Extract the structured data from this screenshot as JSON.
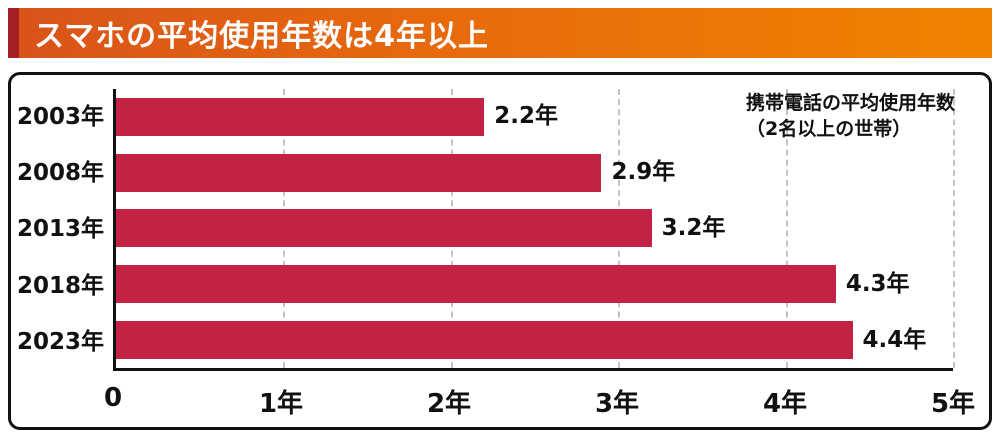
{
  "banner": {
    "title": "スマホの平均使用年数は4年以上",
    "gradient_left": "#d9531a",
    "gradient_right": "#f08300",
    "accent_color": "#a32026"
  },
  "annotation": {
    "line1": "携帯電話の平均使用年数",
    "line2": "（2名以上の世帯）"
  },
  "chart_data": {
    "type": "bar",
    "orientation": "horizontal",
    "title": "スマホの平均使用年数は4年以上",
    "categories": [
      "2003年",
      "2008年",
      "2013年",
      "2018年",
      "2023年"
    ],
    "values": [
      2.2,
      2.9,
      3.2,
      4.3,
      4.4
    ],
    "value_labels": [
      "2.2年",
      "2.9年",
      "3.2年",
      "4.3年",
      "4.4年"
    ],
    "xlim": [
      0,
      5
    ],
    "xticks": [
      0,
      1,
      2,
      3,
      4,
      5
    ],
    "xtick_labels": [
      "0",
      "1年",
      "2年",
      "3年",
      "4年",
      "5年"
    ],
    "bar_color": "#c22345",
    "grid": "dashed-vertical",
    "legend": "none"
  }
}
